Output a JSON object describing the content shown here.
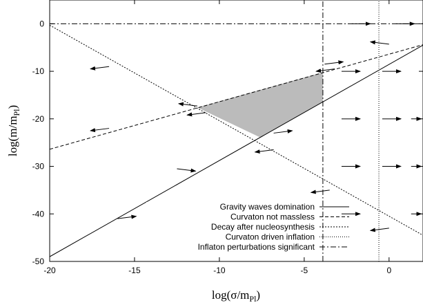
{
  "chart_data": {
    "type": "line",
    "xlabel": "log(σ/m",
    "xlabel_sub": "Pl",
    "xlabel_close": ")",
    "ylabel": "log(m/m",
    "ylabel_sub": "Pl",
    "ylabel_close": ")",
    "xlim": [
      -20,
      2
    ],
    "ylim": [
      -50,
      5
    ],
    "x_ticks": [
      -20,
      -15,
      -10,
      -5,
      0
    ],
    "x_tick_labels": [
      "-20",
      "-15",
      "-10",
      "-5",
      "0"
    ],
    "y_ticks": [
      -50,
      -40,
      -30,
      -20,
      -10,
      0
    ],
    "y_tick_labels": [
      "-50",
      "-40",
      "-30",
      "-20",
      "-10",
      "0"
    ],
    "grid": false,
    "legend_position": "bottom-right",
    "series": [
      {
        "name": "Gravity waves domination",
        "style": "solid",
        "x": [
          -20,
          2
        ],
        "y": [
          -49,
          -4.5
        ]
      },
      {
        "name": "Curvaton not massless",
        "style": "dashed",
        "x": [
          -20,
          2
        ],
        "y": [
          -26.4,
          -4.4
        ]
      },
      {
        "name": "Decay after nucleosynthesis",
        "style": "dotted",
        "x": [
          -20,
          2
        ],
        "y": [
          -0.3,
          -44.5
        ]
      },
      {
        "name": "Curvaton driven inflation",
        "style": "dotted-fine",
        "x": [
          -0.6,
          -0.6
        ],
        "y": [
          -50,
          5
        ]
      },
      {
        "name": "Inflaton perturbations significant",
        "style": "dashdot",
        "x": [
          -3.9,
          -3.9
        ],
        "y": [
          -50,
          5
        ],
        "x2": [
          -20,
          2
        ],
        "y2": [
          0,
          0
        ]
      }
    ],
    "shaded_region": {
      "color": "#bbbbbb",
      "points": [
        [
          -11.3,
          -17.6
        ],
        [
          -3.9,
          -10.2
        ],
        [
          -3.9,
          -16.4
        ],
        [
          -7.6,
          -23.9
        ]
      ]
    },
    "arrows": [
      {
        "x": -16.5,
        "y": -9,
        "dx": -1.1,
        "dy": -0.5
      },
      {
        "x": -16.5,
        "y": -22,
        "dx": -1.1,
        "dy": -0.5
      },
      {
        "x": -11.3,
        "y": -17.3,
        "dx": -1.1,
        "dy": 0.5
      },
      {
        "x": -10.8,
        "y": -18.7,
        "dx": -1.1,
        "dy": -0.5
      },
      {
        "x": -6.8,
        "y": -23,
        "dx": 1.1,
        "dy": 0.5
      },
      {
        "x": -6.8,
        "y": -26.5,
        "dx": -1.1,
        "dy": -0.5
      },
      {
        "x": -12.5,
        "y": -30.5,
        "dx": 1.1,
        "dy": -0.5
      },
      {
        "x": -16,
        "y": -41,
        "dx": 1.1,
        "dy": 0.5
      },
      {
        "x": -3.8,
        "y": -8.5,
        "dx": 1.1,
        "dy": 0.5
      },
      {
        "x": -3.2,
        "y": -9.5,
        "dx": -1.1,
        "dy": -0.5
      },
      {
        "x": -3.5,
        "y": -35,
        "dx": -1.1,
        "dy": -0.5
      },
      {
        "x": 0,
        "y": -4.3,
        "dx": -1.1,
        "dy": 0.5
      },
      {
        "x": 0,
        "y": -43,
        "dx": -1.1,
        "dy": -0.5
      },
      {
        "x": -2.2,
        "y": 0,
        "dx": 1.1,
        "dy": 0
      },
      {
        "x": 0.4,
        "y": 0,
        "dx": 1.1,
        "dy": 0
      },
      {
        "x": -2.8,
        "y": -10,
        "dx": 1.1,
        "dy": 0
      },
      {
        "x": -2.8,
        "y": -20,
        "dx": 1.1,
        "dy": 0
      },
      {
        "x": -2.8,
        "y": -30,
        "dx": 1.1,
        "dy": 0
      },
      {
        "x": -2.8,
        "y": -40,
        "dx": 1.1,
        "dy": 0
      },
      {
        "x": -0.4,
        "y": -10,
        "dx": 1.1,
        "dy": 0
      },
      {
        "x": -0.4,
        "y": -20,
        "dx": 1.1,
        "dy": 0
      },
      {
        "x": -0.4,
        "y": -30,
        "dx": 1.1,
        "dy": 0
      },
      {
        "x": 1.3,
        "y": -20,
        "dx": 0.6,
        "dy": 0
      },
      {
        "x": 1.3,
        "y": -30,
        "dx": 0.6,
        "dy": 0
      },
      {
        "x": 1.3,
        "y": -40,
        "dx": 0.6,
        "dy": 0
      }
    ]
  }
}
